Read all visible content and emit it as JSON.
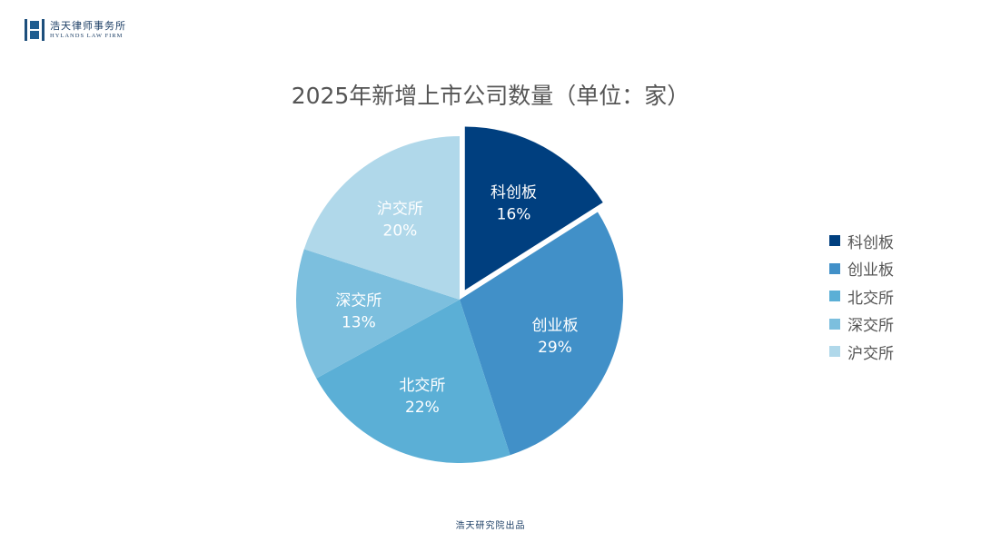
{
  "header": {
    "logo_cn": "浩天律师事务所",
    "logo_en": "HYLANDS LAW FIRM"
  },
  "footer": {
    "text": "浩天研究院出品"
  },
  "chart_data": {
    "type": "pie",
    "title": "2025年新增上市公司数量（单位：家）",
    "categories": [
      "科创板",
      "创业板",
      "北交所",
      "深交所",
      "沪交所"
    ],
    "values": [
      16,
      29,
      22,
      13,
      20
    ],
    "unit": "%",
    "labels": [
      "16%",
      "29%",
      "22%",
      "13%",
      "20%"
    ],
    "colors": [
      "#003f7f",
      "#4190c8",
      "#5bafd6",
      "#7cbfde",
      "#b0d8ea"
    ],
    "exploded": [
      "科创板"
    ],
    "start_angle": "12 o'clock, clockwise",
    "legend_position": "right"
  }
}
